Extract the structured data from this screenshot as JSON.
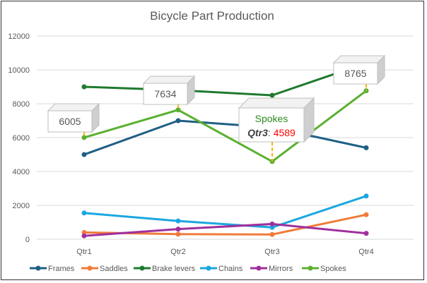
{
  "chart_data": {
    "type": "line",
    "title": "Bicycle Part Production",
    "categories": [
      "Qtr1",
      "Qtr2",
      "Qtr3",
      "Qtr4"
    ],
    "ylim": [
      0,
      12000
    ],
    "yticks": [
      0,
      2000,
      4000,
      6000,
      8000,
      10000,
      12000
    ],
    "grid": true,
    "legend": "bottom",
    "series": [
      {
        "name": "Frames",
        "color": "#1f5f85",
        "values": [
          5000,
          7000,
          6600,
          5400
        ]
      },
      {
        "name": "Saddles",
        "color": "#f07b3a",
        "values": [
          400,
          300,
          280,
          1450
        ]
      },
      {
        "name": "Brake levers",
        "color": "#1e7a2e",
        "values": [
          9000,
          8800,
          8500,
          10400
        ]
      },
      {
        "name": "Chains",
        "color": "#1aa7e0",
        "values": [
          1550,
          1080,
          700,
          2550
        ]
      },
      {
        "name": "Mirrors",
        "color": "#a0309e",
        "values": [
          200,
          600,
          900,
          350
        ]
      },
      {
        "name": "Spokes",
        "color": "#5bb030",
        "values": [
          6005,
          7634,
          4589,
          8765
        ]
      }
    ],
    "data_labels": [
      {
        "series": "Spokes",
        "category": "Qtr1",
        "text": "6005"
      },
      {
        "series": "Spokes",
        "category": "Qtr2",
        "text": "7634"
      },
      {
        "series": "Spokes",
        "category": "Qtr3",
        "series_text": "Spokes",
        "category_text": "Qtr3",
        "value_text": "4589"
      },
      {
        "series": "Spokes",
        "category": "Qtr4",
        "text": "8765"
      }
    ]
  }
}
